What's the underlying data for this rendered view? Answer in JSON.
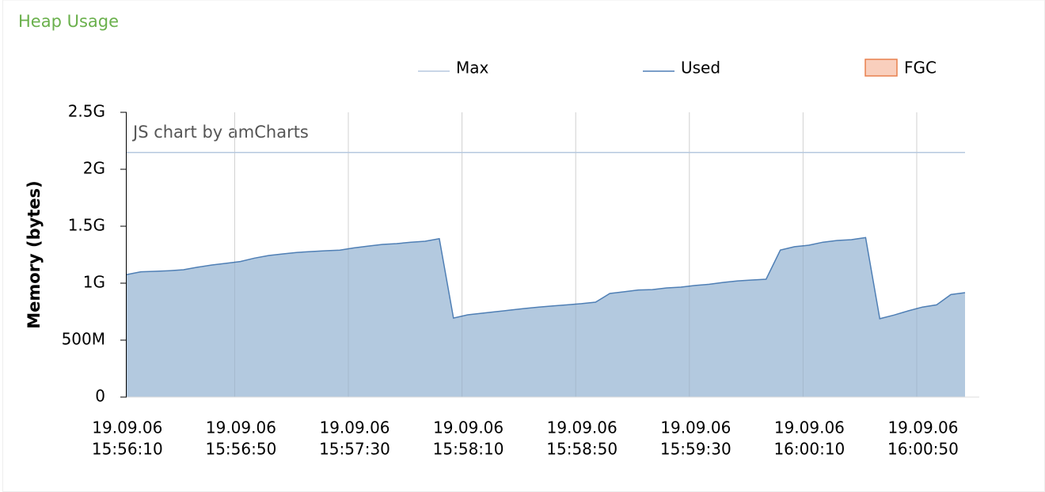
{
  "chart_data": {
    "type": "area",
    "title": "Heap Usage",
    "watermark": "JS chart by amCharts",
    "y_label": "Memory (bytes)",
    "x": [
      "15:56:12",
      "15:56:17",
      "15:56:22",
      "15:56:27",
      "15:56:32",
      "15:56:37",
      "15:56:42",
      "15:56:47",
      "15:56:52",
      "15:56:57",
      "15:57:02",
      "15:57:07",
      "15:57:12",
      "15:57:17",
      "15:57:22",
      "15:57:27",
      "15:57:32",
      "15:57:37",
      "15:57:42",
      "15:57:47",
      "15:57:52",
      "15:57:57",
      "15:58:02",
      "15:58:07",
      "15:58:12",
      "15:58:17",
      "15:58:22",
      "15:58:27",
      "15:58:32",
      "15:58:37",
      "15:58:42",
      "15:58:47",
      "15:58:52",
      "15:58:57",
      "15:59:02",
      "15:59:07",
      "15:59:12",
      "15:59:17",
      "15:59:22",
      "15:59:27",
      "15:59:32",
      "15:59:37",
      "15:59:42",
      "15:59:47",
      "15:59:52",
      "15:59:57",
      "16:00:02",
      "16:00:07",
      "16:00:12",
      "16:00:17",
      "16:00:22",
      "16:00:27",
      "16:00:32",
      "16:00:37",
      "16:00:42",
      "16:00:47",
      "16:00:52",
      "16:00:57",
      "16:01:02",
      "16:01:07"
    ],
    "series": [
      {
        "name": "Used",
        "color": "#4f7fb5",
        "fill": "#b3c9df",
        "values": [
          1076000000,
          1100000000,
          1104000000,
          1110000000,
          1118000000,
          1140000000,
          1160000000,
          1174000000,
          1190000000,
          1220000000,
          1243000000,
          1257000000,
          1270000000,
          1278000000,
          1285000000,
          1290000000,
          1310000000,
          1326000000,
          1340000000,
          1347000000,
          1360000000,
          1368000000,
          1390000000,
          694000000,
          722000000,
          736000000,
          750000000,
          764000000,
          778000000,
          790000000,
          800000000,
          810000000,
          820000000,
          833000000,
          910000000,
          924000000,
          940000000,
          944000000,
          958000000,
          965000000,
          980000000,
          990000000,
          1007000000,
          1020000000,
          1028000000,
          1035000000,
          1290000000,
          1320000000,
          1333000000,
          1360000000,
          1375000000,
          1382000000,
          1400000000,
          688000000,
          720000000,
          757000000,
          790000000,
          810000000,
          900000000,
          917000000
        ]
      }
    ],
    "max_line": {
      "name": "Max",
      "color": "#b6c8df",
      "value": 2147483648
    },
    "fgc": {
      "name": "FGC",
      "color": "#f9cfbd",
      "border": "#e8804f"
    },
    "xlim": [
      "15:56:12",
      "16:01:07"
    ],
    "xticks": [
      {
        "value": "15:56:10",
        "label": [
          "19.09.06",
          "15:56:10"
        ]
      },
      {
        "value": "15:56:50",
        "label": [
          "19.09.06",
          "15:56:50"
        ]
      },
      {
        "value": "15:57:30",
        "label": [
          "19.09.06",
          "15:57:30"
        ]
      },
      {
        "value": "15:58:10",
        "label": [
          "19.09.06",
          "15:58:10"
        ]
      },
      {
        "value": "15:58:50",
        "label": [
          "19.09.06",
          "15:58:50"
        ]
      },
      {
        "value": "15:59:30",
        "label": [
          "19.09.06",
          "15:59:30"
        ]
      },
      {
        "value": "16:00:10",
        "label": [
          "19.09.06",
          "16:00:10"
        ]
      },
      {
        "value": "16:00:50",
        "label": [
          "19.09.06",
          "16:00:50"
        ]
      }
    ],
    "ylim": [
      0,
      2500000000
    ],
    "yticks": [
      0,
      {
        "value": 500000000,
        "label": "500M"
      },
      {
        "value": 1000000000,
        "label": "1G"
      },
      {
        "value": 1500000000,
        "label": "1.5G"
      },
      {
        "value": 2000000000,
        "label": "2G"
      },
      {
        "value": 2500000000,
        "label": "2.5G"
      }
    ],
    "grid": true
  }
}
